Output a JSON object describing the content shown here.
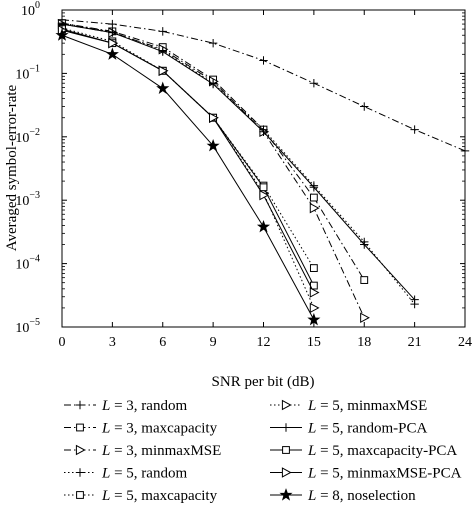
{
  "chart_data": {
    "type": "line",
    "xlabel": "SNR per bit (dB)",
    "ylabel": "Averaged symbol-error-rate",
    "xlim": [
      0,
      24
    ],
    "ylim": [
      1e-05,
      1
    ],
    "yscale": "log",
    "grid": false,
    "legend_position": "bottom, two columns",
    "x_ticks": [
      0,
      3,
      6,
      9,
      12,
      15,
      18,
      21,
      24
    ],
    "x_tick_labels": [
      "0",
      "3",
      "6",
      "9",
      "12",
      "15",
      "18",
      "21",
      "24"
    ],
    "y_ticks": [
      1e-05,
      0.0001,
      0.001,
      0.01,
      0.1,
      1
    ],
    "y_tick_labels": [
      {
        "base": "10",
        "exp": "−5"
      },
      {
        "base": "10",
        "exp": "−4"
      },
      {
        "base": "10",
        "exp": "−3"
      },
      {
        "base": "10",
        "exp": "−2"
      },
      {
        "base": "10",
        "exp": "−1"
      },
      {
        "base": "10",
        "exp": "0"
      }
    ],
    "series": [
      {
        "L": "3",
        "scheme": "random",
        "line": "dashdot",
        "marker": "plus",
        "x": [
          0,
          3,
          6,
          9,
          12,
          15,
          18,
          21,
          24
        ],
        "y": [
          0.7,
          0.6,
          0.46,
          0.3,
          0.16,
          0.07,
          0.03,
          0.013,
          0.006
        ]
      },
      {
        "L": "3",
        "scheme": "maxcapacity",
        "line": "dashdot",
        "marker": "square",
        "x": [
          0,
          3,
          6,
          9,
          12,
          15,
          18
        ],
        "y": [
          0.62,
          0.46,
          0.26,
          0.08,
          0.013,
          0.0011,
          5.5e-05
        ]
      },
      {
        "L": "3",
        "scheme": "minmaxMSE",
        "line": "dashdot",
        "marker": "triangle-right",
        "x": [
          0,
          3,
          6,
          9,
          12,
          15,
          18
        ],
        "y": [
          0.6,
          0.44,
          0.24,
          0.075,
          0.012,
          0.00075,
          1.4e-05
        ]
      },
      {
        "L": "5",
        "scheme": "random",
        "line": "dotted",
        "marker": "plus",
        "x": [
          0,
          3,
          6,
          9,
          12,
          15,
          18,
          21
        ],
        "y": [
          0.62,
          0.45,
          0.23,
          0.07,
          0.013,
          0.0017,
          0.00022,
          2.3e-05
        ]
      },
      {
        "L": "5",
        "scheme": "maxcapacity",
        "line": "dotted",
        "marker": "square",
        "x": [
          0,
          3,
          6,
          9,
          12,
          15
        ],
        "y": [
          0.52,
          0.32,
          0.11,
          0.02,
          0.0017,
          8.5e-05
        ]
      },
      {
        "L": "5",
        "scheme": "minmaxMSE",
        "line": "dotted",
        "marker": "triangle-right",
        "x": [
          0,
          3,
          6,
          9,
          12,
          15
        ],
        "y": [
          0.5,
          0.3,
          0.11,
          0.02,
          0.0013,
          2e-05
        ]
      },
      {
        "L": "5",
        "scheme": "random-PCA",
        "line": "solid",
        "marker": "plus",
        "x": [
          0,
          3,
          6,
          9,
          12,
          15,
          18,
          21
        ],
        "y": [
          0.6,
          0.44,
          0.22,
          0.068,
          0.012,
          0.0016,
          0.0002,
          2.7e-05
        ]
      },
      {
        "L": "5",
        "scheme": "maxcapacity-PCA",
        "line": "solid",
        "marker": "square",
        "x": [
          0,
          3,
          6,
          9,
          12,
          15
        ],
        "y": [
          0.5,
          0.3,
          0.11,
          0.02,
          0.0016,
          4.5e-05
        ]
      },
      {
        "L": "5",
        "scheme": "minmaxMSE-PCA",
        "line": "solid",
        "marker": "triangle-right",
        "x": [
          0,
          3,
          6,
          9,
          12,
          15
        ],
        "y": [
          0.48,
          0.3,
          0.11,
          0.02,
          0.0012,
          3.5e-05
        ]
      },
      {
        "L": "8",
        "scheme": "noselection",
        "line": "solid",
        "marker": "star",
        "x": [
          0,
          3,
          6,
          9,
          12,
          15
        ],
        "y": [
          0.4,
          0.2,
          0.058,
          0.0072,
          0.00038,
          1.3e-05
        ]
      }
    ],
    "legend_var": "L",
    "legend_eq": " = ",
    "legend_sep": ", "
  }
}
